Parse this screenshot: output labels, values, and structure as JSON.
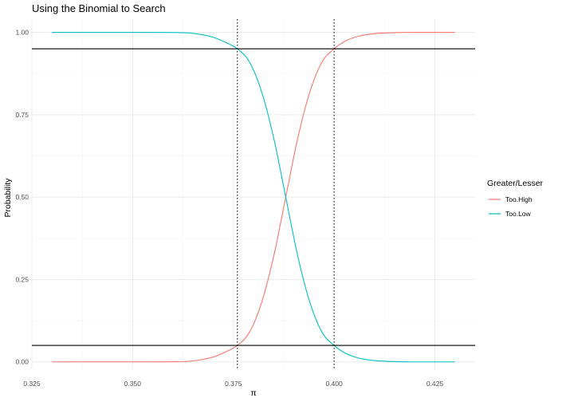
{
  "chart_data": {
    "type": "line",
    "title": "Using the Binomial to Search",
    "xlabel": "π",
    "ylabel": "Probability",
    "xlim": [
      0.325,
      0.435
    ],
    "ylim": [
      -0.02,
      1.04
    ],
    "xticks": [
      0.325,
      0.35,
      0.375,
      0.4,
      0.425
    ],
    "xtick_labels": [
      "0.325",
      "0.350",
      "0.375",
      "0.400",
      "0.425"
    ],
    "yticks": [
      0,
      0.25,
      0.5,
      0.75,
      1
    ],
    "ytick_labels": [
      "0.00",
      "0.25",
      "0.50",
      "0.75",
      "1.00"
    ],
    "grid": true,
    "legend": {
      "title": "Greater/Lesser",
      "position": "right"
    },
    "series": [
      {
        "name": "Too.High",
        "color": "#F8766D",
        "x": [
          0.33,
          0.34,
          0.35,
          0.36,
          0.365,
          0.37,
          0.373,
          0.376,
          0.379,
          0.382,
          0.385,
          0.388,
          0.391,
          0.394,
          0.397,
          0.4,
          0.403,
          0.406,
          0.41,
          0.415,
          0.42,
          0.43
        ],
        "y": [
          0,
          0,
          0,
          0.0003,
          0.003,
          0.015,
          0.03,
          0.05,
          0.09,
          0.18,
          0.32,
          0.5,
          0.68,
          0.82,
          0.91,
          0.95,
          0.975,
          0.988,
          0.996,
          0.999,
          1,
          1
        ]
      },
      {
        "name": "Too.Low",
        "color": "#00BFC4",
        "x": [
          0.33,
          0.34,
          0.35,
          0.36,
          0.365,
          0.37,
          0.373,
          0.376,
          0.379,
          0.382,
          0.385,
          0.388,
          0.391,
          0.394,
          0.397,
          0.4,
          0.403,
          0.406,
          0.41,
          0.415,
          0.42,
          0.43
        ],
        "y": [
          1,
          1,
          1,
          0.9997,
          0.997,
          0.985,
          0.97,
          0.95,
          0.91,
          0.82,
          0.68,
          0.5,
          0.32,
          0.18,
          0.09,
          0.05,
          0.025,
          0.012,
          0.004,
          0.001,
          0,
          0
        ]
      }
    ],
    "hlines": [
      0.05,
      0.95
    ],
    "vlines": [
      0.376,
      0.4
    ]
  }
}
